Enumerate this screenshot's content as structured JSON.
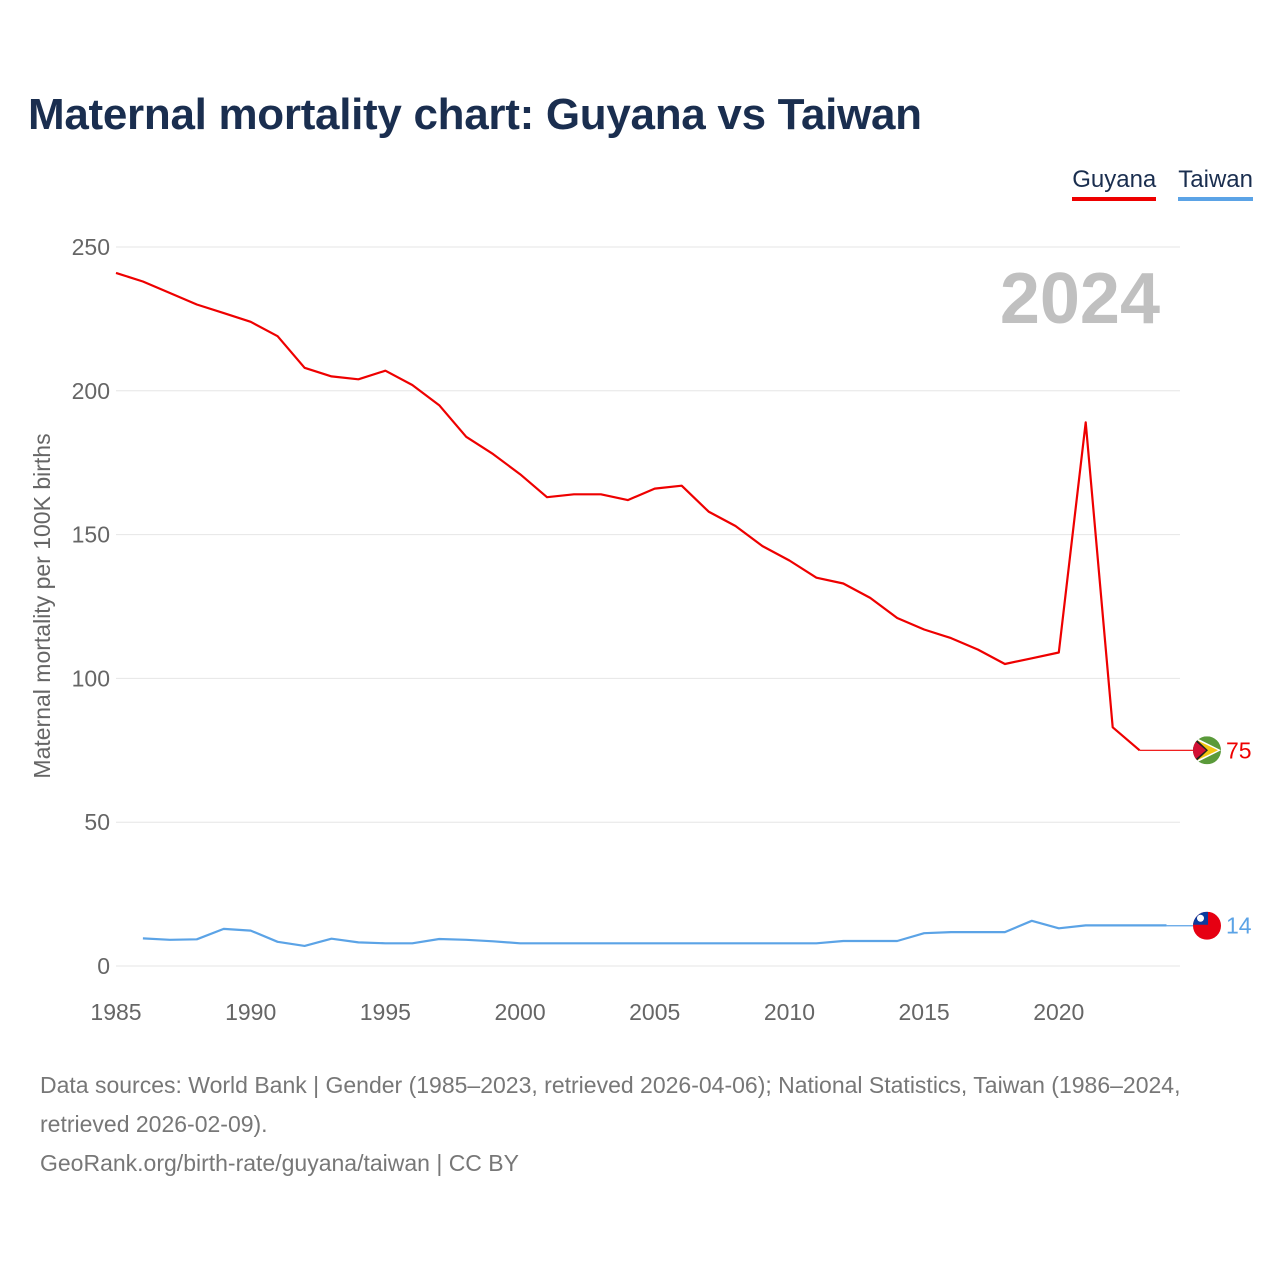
{
  "title": "Maternal mortality chart: Guyana vs Taiwan",
  "legend": [
    {
      "label": "Guyana",
      "color": "#ee0000"
    },
    {
      "label": "Taiwan",
      "color": "#5ba3e6"
    }
  ],
  "year_watermark": "2024",
  "chart_data": {
    "type": "line",
    "title": "Maternal mortality chart: Guyana vs Taiwan",
    "xlabel": "",
    "ylabel": "Maternal mortality per 100K births",
    "xlim": [
      1985,
      2024.5
    ],
    "ylim": [
      0,
      250
    ],
    "x_ticks": [
      1985,
      1990,
      1995,
      2000,
      2005,
      2010,
      2015,
      2020
    ],
    "y_ticks": [
      0,
      50,
      100,
      150,
      200,
      250
    ],
    "grid": true,
    "series": [
      {
        "name": "Guyana",
        "color": "#ee0000",
        "end_label": "75",
        "end_value": 75,
        "x": [
          1985,
          1986,
          1987,
          1988,
          1989,
          1990,
          1991,
          1992,
          1993,
          1994,
          1995,
          1996,
          1997,
          1998,
          1999,
          2000,
          2001,
          2002,
          2003,
          2004,
          2005,
          2006,
          2007,
          2008,
          2009,
          2010,
          2011,
          2012,
          2013,
          2014,
          2015,
          2016,
          2017,
          2018,
          2019,
          2020,
          2021,
          2022,
          2023
        ],
        "values": [
          241,
          238,
          234,
          230,
          227,
          224,
          219,
          208,
          205,
          204,
          207,
          202,
          195,
          184,
          178,
          171,
          163,
          164,
          164,
          162,
          166,
          167,
          158,
          153,
          146,
          141,
          135,
          133,
          128,
          121,
          117,
          114,
          110,
          105,
          107,
          109,
          189,
          83,
          75
        ]
      },
      {
        "name": "Taiwan",
        "color": "#5ba3e6",
        "end_label": "14",
        "end_value": 14,
        "x": [
          1986,
          1987,
          1988,
          1989,
          1990,
          1991,
          1992,
          1993,
          1994,
          1995,
          1996,
          1997,
          1998,
          1999,
          2000,
          2001,
          2002,
          2003,
          2004,
          2005,
          2006,
          2007,
          2008,
          2009,
          2010,
          2011,
          2012,
          2013,
          2014,
          2015,
          2016,
          2017,
          2018,
          2019,
          2020,
          2021,
          2022,
          2023,
          2024
        ],
        "values": [
          9.6,
          9.1,
          9.3,
          12.9,
          12.3,
          8.4,
          7.0,
          9.5,
          8.2,
          7.9,
          7.9,
          9.4,
          9.1,
          8.6,
          7.9,
          7.9,
          7.9,
          7.9,
          7.9,
          7.9,
          7.9,
          7.9,
          7.9,
          7.9,
          7.9,
          7.9,
          8.7,
          8.7,
          8.7,
          11.4,
          11.8,
          11.8,
          11.8,
          15.7,
          13.1,
          14.1,
          14.1,
          14.1,
          14.1
        ]
      }
    ]
  },
  "footer": {
    "sources": "Data sources: World Bank | Gender (1985–2023, retrieved 2026-04-06); National Statistics, Taiwan (1986–2024, retrieved 2026-02-09).",
    "attribution": "GeoRank.org/birth-rate/guyana/taiwan | CC BY"
  }
}
